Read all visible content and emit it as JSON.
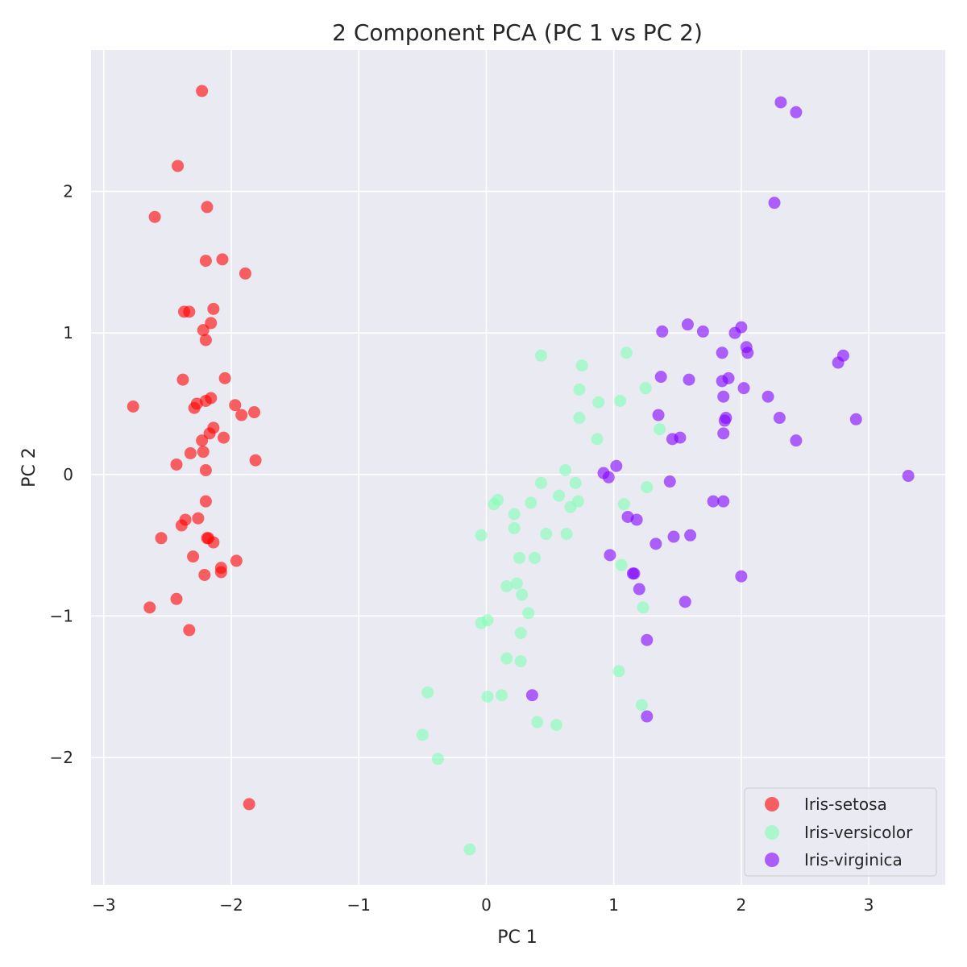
{
  "chart_data": {
    "type": "scatter",
    "title": "2 Component PCA (PC 1 vs PC 2)",
    "xlabel": "PC 1",
    "ylabel": "PC 2",
    "xlim": [
      -3.1,
      3.6
    ],
    "ylim": [
      -2.9,
      3.0
    ],
    "xticks": [
      -3,
      -2,
      -1,
      0,
      1,
      2,
      3
    ],
    "xtick_labels": [
      "−3",
      "−2",
      "−1",
      "0",
      "1",
      "2",
      "3"
    ],
    "yticks": [
      -2,
      -1,
      0,
      1,
      2
    ],
    "ytick_labels": [
      "−2",
      "−1",
      "0",
      "1",
      "2"
    ],
    "grid": true,
    "background": "#eaeaf2",
    "legend_position": "bottom-right",
    "series": [
      {
        "name": "Iris-setosa",
        "color": "#ff0000",
        "points": [
          [
            -2.23,
            2.71
          ],
          [
            -2.42,
            2.18
          ],
          [
            -2.6,
            1.82
          ],
          [
            -2.19,
            1.89
          ],
          [
            -2.2,
            1.51
          ],
          [
            -2.07,
            1.52
          ],
          [
            -1.89,
            1.42
          ],
          [
            -2.37,
            1.15
          ],
          [
            -2.33,
            1.15
          ],
          [
            -2.14,
            1.17
          ],
          [
            -2.16,
            1.07
          ],
          [
            -2.22,
            1.02
          ],
          [
            -2.2,
            0.95
          ],
          [
            -2.38,
            0.67
          ],
          [
            -2.05,
            0.68
          ],
          [
            -2.77,
            0.48
          ],
          [
            -2.27,
            0.5
          ],
          [
            -2.29,
            0.47
          ],
          [
            -2.2,
            0.52
          ],
          [
            -2.16,
            0.54
          ],
          [
            -1.97,
            0.49
          ],
          [
            -1.92,
            0.42
          ],
          [
            -1.82,
            0.44
          ],
          [
            -2.14,
            0.33
          ],
          [
            -2.17,
            0.29
          ],
          [
            -2.23,
            0.24
          ],
          [
            -2.06,
            0.26
          ],
          [
            -2.32,
            0.15
          ],
          [
            -2.22,
            0.16
          ],
          [
            -2.43,
            0.07
          ],
          [
            -1.81,
            0.1
          ],
          [
            -2.2,
            0.03
          ],
          [
            -2.2,
            -0.19
          ],
          [
            -2.36,
            -0.32
          ],
          [
            -2.26,
            -0.31
          ],
          [
            -2.39,
            -0.36
          ],
          [
            -2.55,
            -0.45
          ],
          [
            -2.19,
            -0.45
          ],
          [
            -2.18,
            -0.45
          ],
          [
            -2.14,
            -0.48
          ],
          [
            -2.3,
            -0.58
          ],
          [
            -1.96,
            -0.61
          ],
          [
            -2.08,
            -0.66
          ],
          [
            -2.08,
            -0.69
          ],
          [
            -2.21,
            -0.71
          ],
          [
            -2.64,
            -0.94
          ],
          [
            -2.43,
            -0.88
          ],
          [
            -2.33,
            -1.1
          ],
          [
            -1.86,
            -2.33
          ]
        ]
      },
      {
        "name": "Iris-versicolor",
        "color": "#80ffb4",
        "points": [
          [
            0.43,
            0.84
          ],
          [
            0.75,
            0.77
          ],
          [
            1.1,
            0.86
          ],
          [
            0.73,
            0.6
          ],
          [
            0.88,
            0.51
          ],
          [
            1.05,
            0.52
          ],
          [
            1.25,
            0.61
          ],
          [
            0.73,
            0.4
          ],
          [
            1.36,
            0.32
          ],
          [
            0.87,
            0.25
          ],
          [
            0.62,
            0.03
          ],
          [
            0.43,
            -0.06
          ],
          [
            0.7,
            -0.06
          ],
          [
            0.57,
            -0.15
          ],
          [
            0.09,
            -0.18
          ],
          [
            0.06,
            -0.21
          ],
          [
            0.35,
            -0.2
          ],
          [
            0.72,
            -0.19
          ],
          [
            0.66,
            -0.23
          ],
          [
            1.26,
            -0.09
          ],
          [
            1.08,
            -0.21
          ],
          [
            0.22,
            -0.28
          ],
          [
            0.22,
            -0.38
          ],
          [
            -0.04,
            -0.43
          ],
          [
            0.47,
            -0.42
          ],
          [
            0.63,
            -0.42
          ],
          [
            0.26,
            -0.59
          ],
          [
            0.38,
            -0.59
          ],
          [
            1.06,
            -0.64
          ],
          [
            0.16,
            -0.79
          ],
          [
            0.24,
            -0.77
          ],
          [
            0.28,
            -0.85
          ],
          [
            0.33,
            -0.98
          ],
          [
            1.23,
            -0.94
          ],
          [
            -0.04,
            -1.05
          ],
          [
            0.01,
            -1.03
          ],
          [
            0.27,
            -1.12
          ],
          [
            0.16,
            -1.3
          ],
          [
            0.27,
            -1.32
          ],
          [
            1.04,
            -1.39
          ],
          [
            -0.46,
            -1.54
          ],
          [
            0.01,
            -1.57
          ],
          [
            0.12,
            -1.56
          ],
          [
            1.22,
            -1.63
          ],
          [
            0.4,
            -1.75
          ],
          [
            0.55,
            -1.77
          ],
          [
            -0.5,
            -1.84
          ],
          [
            -0.38,
            -2.01
          ],
          [
            -0.13,
            -2.65
          ]
        ]
      },
      {
        "name": "Iris-virginica",
        "color": "#8000ff",
        "points": [
          [
            2.31,
            2.63
          ],
          [
            2.43,
            2.56
          ],
          [
            2.26,
            1.92
          ],
          [
            1.38,
            1.01
          ],
          [
            1.58,
            1.06
          ],
          [
            1.7,
            1.01
          ],
          [
            1.95,
            1.0
          ],
          [
            2.0,
            1.04
          ],
          [
            1.85,
            0.86
          ],
          [
            2.04,
            0.9
          ],
          [
            2.05,
            0.86
          ],
          [
            2.8,
            0.84
          ],
          [
            2.76,
            0.79
          ],
          [
            1.37,
            0.69
          ],
          [
            1.59,
            0.67
          ],
          [
            1.85,
            0.66
          ],
          [
            1.9,
            0.68
          ],
          [
            2.02,
            0.61
          ],
          [
            1.86,
            0.55
          ],
          [
            2.21,
            0.55
          ],
          [
            1.35,
            0.42
          ],
          [
            1.88,
            0.4
          ],
          [
            1.87,
            0.38
          ],
          [
            2.3,
            0.4
          ],
          [
            2.9,
            0.39
          ],
          [
            1.46,
            0.25
          ],
          [
            1.52,
            0.26
          ],
          [
            1.86,
            0.29
          ],
          [
            2.43,
            0.24
          ],
          [
            1.02,
            0.06
          ],
          [
            0.92,
            0.01
          ],
          [
            0.96,
            -0.02
          ],
          [
            1.44,
            -0.05
          ],
          [
            1.78,
            -0.19
          ],
          [
            1.86,
            -0.19
          ],
          [
            3.31,
            -0.01
          ],
          [
            1.11,
            -0.3
          ],
          [
            1.18,
            -0.32
          ],
          [
            1.47,
            -0.44
          ],
          [
            1.6,
            -0.43
          ],
          [
            1.33,
            -0.49
          ],
          [
            0.97,
            -0.57
          ],
          [
            1.16,
            -0.7
          ],
          [
            1.15,
            -0.7
          ],
          [
            2.0,
            -0.72
          ],
          [
            1.2,
            -0.81
          ],
          [
            1.56,
            -0.9
          ],
          [
            1.26,
            -1.17
          ],
          [
            0.36,
            -1.56
          ],
          [
            1.26,
            -1.71
          ]
        ]
      }
    ]
  }
}
